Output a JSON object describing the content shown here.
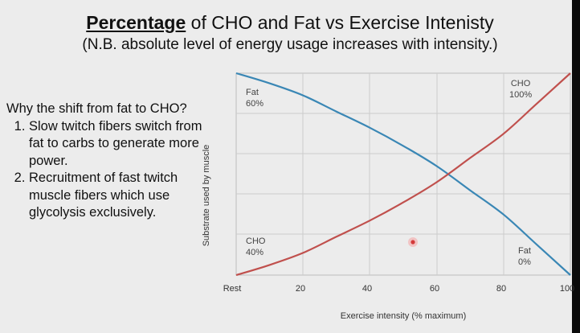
{
  "slide": {
    "title_em": "Percentage",
    "title_rest": " of CHO and Fat vs Exercise Intenisty",
    "subtitle": "(N.B. absolute level of energy usage increases with intensity.)",
    "question": "Why the shift from fat to CHO?",
    "reasons": [
      "Slow twitch fibers switch from fat to carbs to generate more power.",
      "Recruitment of fast twitch muscle fibers which use glycolysis exclusively."
    ]
  },
  "chart_data": {
    "type": "line",
    "title": "",
    "xlabel": "Exercise intensity (% maximum)",
    "ylabel": "Substrate used by muscle",
    "xlim": [
      0,
      100
    ],
    "ylim": [
      0,
      100
    ],
    "x_tick_values": [
      0,
      20,
      40,
      60,
      80,
      100
    ],
    "x_tick_labels": [
      "Rest",
      "20",
      "40",
      "60",
      "80",
      "100"
    ],
    "grid": true,
    "series": [
      {
        "name": "Fat",
        "color": "#3a87b5",
        "x": [
          0,
          10,
          20,
          30,
          40,
          50,
          60,
          70,
          80,
          90,
          100
        ],
        "y": [
          100,
          95,
          89,
          81,
          73,
          64,
          54,
          42,
          30,
          15,
          0
        ]
      },
      {
        "name": "CHO",
        "color": "#c0504d",
        "x": [
          0,
          10,
          20,
          30,
          40,
          50,
          60,
          70,
          80,
          90,
          100
        ],
        "y": [
          0,
          5,
          11,
          19,
          27,
          36,
          46,
          58,
          70,
          85,
          100
        ]
      }
    ],
    "annotations": [
      {
        "series": "Fat",
        "name": "Fat",
        "value": "60%"
      },
      {
        "series": "CHO",
        "name": "CHO",
        "value": "100%"
      },
      {
        "series": "CHO",
        "name": "CHO",
        "value": "40%"
      },
      {
        "series": "Fat",
        "name": "Fat",
        "value": "0%"
      }
    ],
    "pointer_color": "#d33a3a"
  }
}
